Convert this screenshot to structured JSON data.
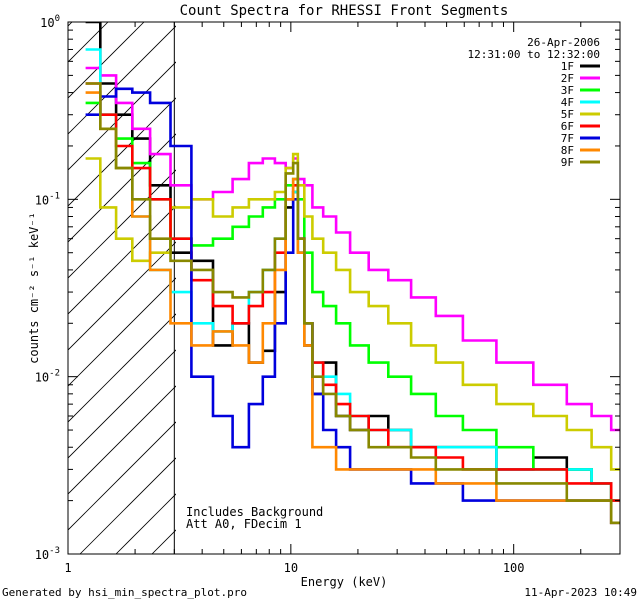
{
  "chart_data": {
    "type": "line",
    "title": "Count Spectra for RHESSI Front Segments",
    "xlabel": "Energy (keV)",
    "ylabel": "counts cm⁻² s⁻¹ keV⁻¹",
    "xscale": "log",
    "yscale": "log",
    "xlim": [
      1,
      300
    ],
    "ylim": [
      0.001,
      1
    ],
    "x_tick_labels": [
      {
        "value": 1,
        "label": "1"
      },
      {
        "value": 10,
        "label": "10"
      },
      {
        "value": 100,
        "label": "100"
      }
    ],
    "y_tick_labels": [
      {
        "value": 1,
        "base": "10",
        "exp": "0"
      },
      {
        "value": 0.1,
        "base": "10",
        "exp": "-1"
      },
      {
        "value": 0.01,
        "base": "10",
        "exp": "-2"
      },
      {
        "value": 0.001,
        "base": "10",
        "exp": "-3"
      }
    ],
    "date": "26-Apr-2006",
    "time_range": "12:31:00 to 12:32:00",
    "legend_position": "top-right",
    "hatched_region": {
      "x_min": 1,
      "x_max": 3
    },
    "annotations": [
      "Includes Background",
      "Att A0, FDecim 1"
    ],
    "footer_left": "Generated by hsi_min_spectra_plot.pro",
    "footer_right": "11-Apr-2023 10:49",
    "series": [
      {
        "name": "1F",
        "color": "#000000",
        "x": [
          1.3,
          1.5,
          1.8,
          2.1,
          2.6,
          3.2,
          4,
          5,
          6,
          7,
          8,
          9,
          10,
          10.5,
          11,
          12,
          13,
          15,
          17,
          20,
          25,
          30,
          40,
          50,
          70,
          100,
          150,
          200,
          250,
          300
        ],
        "y": [
          1.0,
          0.45,
          0.3,
          0.22,
          0.12,
          0.05,
          0.045,
          0.015,
          0.02,
          0.012,
          0.014,
          0.03,
          0.09,
          0.11,
          0.05,
          0.015,
          0.008,
          0.012,
          0.006,
          0.005,
          0.006,
          0.005,
          0.004,
          0.004,
          0.004,
          0.003,
          0.0035,
          0.003,
          0.0025,
          0.002
        ]
      },
      {
        "name": "2F",
        "color": "#ff00ff",
        "x": [
          1.3,
          1.5,
          1.8,
          2.1,
          2.6,
          3.2,
          4,
          5,
          6,
          7,
          8,
          9,
          10,
          10.5,
          11,
          12,
          13,
          15,
          17,
          20,
          25,
          30,
          40,
          50,
          70,
          100,
          150,
          200,
          250,
          300
        ],
        "y": [
          0.55,
          0.5,
          0.35,
          0.25,
          0.18,
          0.12,
          0.1,
          0.11,
          0.13,
          0.16,
          0.17,
          0.16,
          0.15,
          0.17,
          0.13,
          0.12,
          0.09,
          0.08,
          0.065,
          0.05,
          0.04,
          0.035,
          0.028,
          0.022,
          0.016,
          0.012,
          0.009,
          0.007,
          0.006,
          0.005
        ]
      },
      {
        "name": "3F",
        "color": "#00ff00",
        "x": [
          1.3,
          1.5,
          1.8,
          2.1,
          2.6,
          3.2,
          4,
          5,
          6,
          7,
          8,
          9,
          10,
          10.5,
          11,
          12,
          13,
          15,
          17,
          20,
          25,
          30,
          40,
          50,
          70,
          100,
          150,
          200,
          250,
          300
        ],
        "y": [
          0.35,
          0.3,
          0.22,
          0.16,
          0.1,
          0.06,
          0.055,
          0.06,
          0.07,
          0.08,
          0.09,
          0.1,
          0.12,
          0.13,
          0.1,
          0.05,
          0.03,
          0.025,
          0.02,
          0.015,
          0.012,
          0.01,
          0.008,
          0.006,
          0.005,
          0.004,
          0.003,
          0.003,
          0.0025,
          0.002
        ]
      },
      {
        "name": "4F",
        "color": "#00ffff",
        "x": [
          1.3,
          1.5,
          1.8,
          2.1,
          2.6,
          3.2,
          4,
          5,
          6,
          7,
          8,
          9,
          10,
          10.5,
          11,
          12,
          13,
          15,
          17,
          20,
          25,
          30,
          40,
          50,
          70,
          100,
          150,
          200,
          250,
          300
        ],
        "y": [
          0.7,
          0.3,
          0.15,
          0.08,
          0.04,
          0.03,
          0.02,
          0.018,
          0.02,
          0.03,
          0.04,
          0.06,
          0.1,
          0.11,
          0.05,
          0.02,
          0.012,
          0.01,
          0.008,
          0.006,
          0.005,
          0.005,
          0.004,
          0.004,
          0.004,
          0.003,
          0.003,
          0.003,
          0.0025,
          0.002
        ]
      },
      {
        "name": "5F",
        "color": "#cccc00",
        "x": [
          1.3,
          1.5,
          1.8,
          2.1,
          2.6,
          3.2,
          4,
          5,
          6,
          7,
          8,
          9,
          10,
          10.5,
          11,
          12,
          13,
          15,
          17,
          20,
          25,
          30,
          40,
          50,
          70,
          100,
          150,
          200,
          250,
          300
        ],
        "y": [
          0.17,
          0.09,
          0.06,
          0.045,
          0.05,
          0.09,
          0.1,
          0.08,
          0.09,
          0.1,
          0.1,
          0.11,
          0.15,
          0.18,
          0.12,
          0.08,
          0.06,
          0.05,
          0.04,
          0.03,
          0.025,
          0.02,
          0.015,
          0.012,
          0.009,
          0.007,
          0.006,
          0.005,
          0.004,
          0.003
        ]
      },
      {
        "name": "6F",
        "color": "#ff0000",
        "x": [
          1.3,
          1.5,
          1.8,
          2.1,
          2.6,
          3.2,
          4,
          5,
          6,
          7,
          8,
          9,
          10,
          10.5,
          11,
          12,
          13,
          15,
          17,
          20,
          25,
          30,
          40,
          50,
          70,
          100,
          150,
          200,
          250,
          300
        ],
        "y": [
          0.45,
          0.3,
          0.2,
          0.15,
          0.1,
          0.06,
          0.035,
          0.025,
          0.02,
          0.025,
          0.03,
          0.05,
          0.1,
          0.12,
          0.06,
          0.02,
          0.012,
          0.009,
          0.007,
          0.006,
          0.005,
          0.004,
          0.004,
          0.0035,
          0.003,
          0.003,
          0.003,
          0.0025,
          0.0025,
          0.002
        ]
      },
      {
        "name": "7F",
        "color": "#0000dd",
        "x": [
          1.3,
          1.5,
          1.8,
          2.1,
          2.6,
          3.2,
          4,
          5,
          6,
          7,
          8,
          9,
          10,
          10.5,
          11,
          12,
          13,
          15,
          17,
          20,
          25,
          30,
          40,
          50,
          70,
          100,
          150,
          200,
          250,
          300
        ],
        "y": [
          0.3,
          0.38,
          0.42,
          0.4,
          0.35,
          0.2,
          0.01,
          0.006,
          0.004,
          0.007,
          0.01,
          0.02,
          0.05,
          0.1,
          0.06,
          0.02,
          0.008,
          0.005,
          0.004,
          0.003,
          0.003,
          0.003,
          0.0025,
          0.0025,
          0.002,
          0.002,
          0.002,
          0.002,
          0.002,
          0.0015
        ]
      },
      {
        "name": "8F",
        "color": "#ff8800",
        "x": [
          1.3,
          1.5,
          1.8,
          2.1,
          2.6,
          3.2,
          4,
          5,
          6,
          7,
          8,
          9,
          10,
          10.5,
          11,
          12,
          13,
          15,
          17,
          20,
          25,
          30,
          40,
          50,
          70,
          100,
          150,
          200,
          250,
          300
        ],
        "y": [
          0.4,
          0.25,
          0.15,
          0.08,
          0.04,
          0.02,
          0.015,
          0.018,
          0.015,
          0.012,
          0.02,
          0.04,
          0.1,
          0.13,
          0.05,
          0.015,
          0.004,
          0.004,
          0.003,
          0.003,
          0.003,
          0.003,
          0.003,
          0.0025,
          0.0025,
          0.002,
          0.002,
          0.002,
          0.002,
          0.0015
        ]
      },
      {
        "name": "9F",
        "color": "#888800",
        "x": [
          1.3,
          1.5,
          1.8,
          2.1,
          2.6,
          3.2,
          4,
          5,
          6,
          7,
          8,
          9,
          10,
          10.5,
          11,
          12,
          13,
          15,
          17,
          20,
          25,
          30,
          40,
          50,
          70,
          100,
          150,
          200,
          250,
          300
        ],
        "y": [
          0.45,
          0.25,
          0.15,
          0.1,
          0.06,
          0.045,
          0.04,
          0.03,
          0.028,
          0.03,
          0.04,
          0.06,
          0.14,
          0.16,
          0.06,
          0.02,
          0.01,
          0.008,
          0.006,
          0.005,
          0.004,
          0.004,
          0.0035,
          0.003,
          0.003,
          0.0025,
          0.0025,
          0.002,
          0.002,
          0.0015
        ]
      }
    ]
  }
}
